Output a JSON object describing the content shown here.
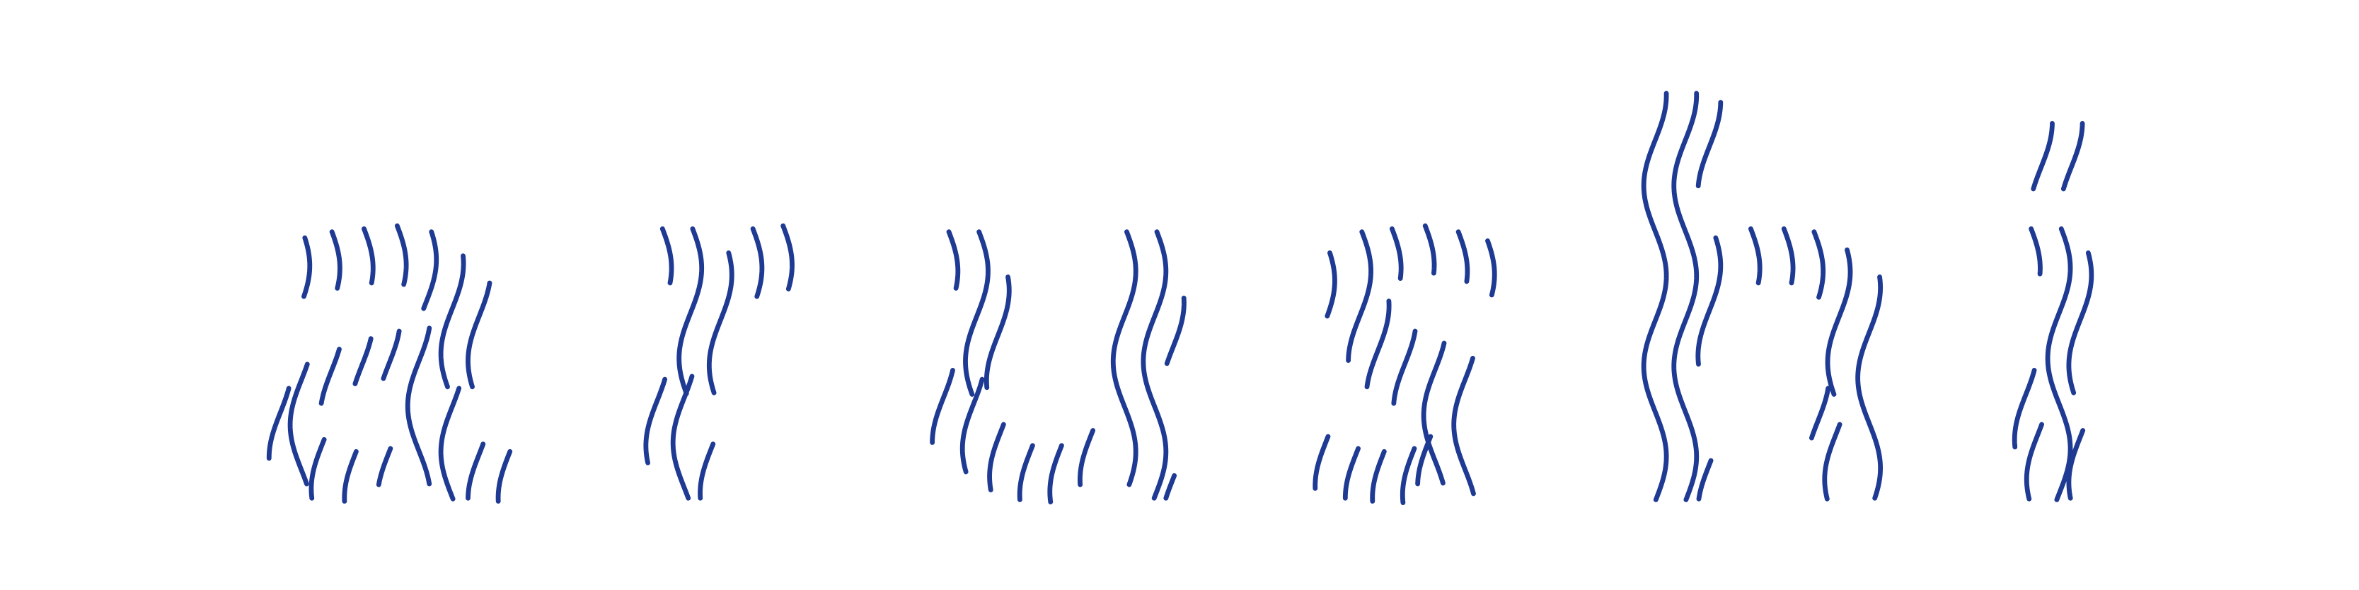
{
  "artwork": {
    "stroke_color": "#1f3a93",
    "background_color": "#ffffff",
    "glyph_count": 6
  }
}
